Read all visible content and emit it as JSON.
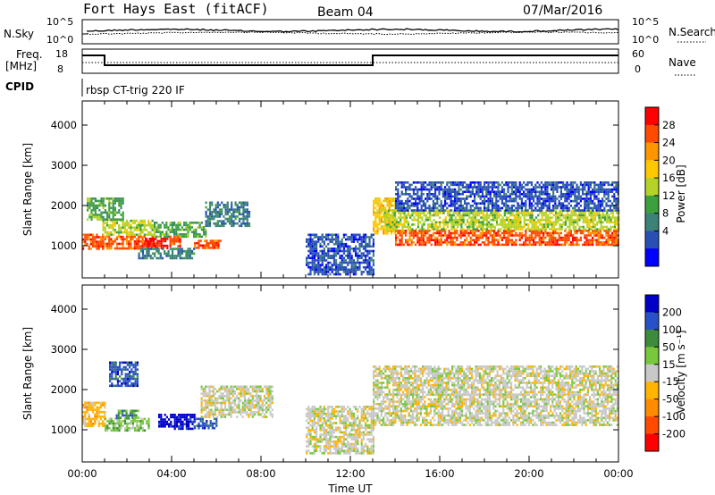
{
  "header": {
    "station": "Fort Hays East (fitACF)",
    "beam": "Beam 04",
    "date": "07/Mar/2016"
  },
  "top_panel_labels": {
    "nsky": "N.Sky",
    "nsearch": "N.Search",
    "nsky_ticks": [
      "10^5",
      "10^0"
    ],
    "nsearch_ticks": [
      "10^5",
      "10^0"
    ],
    "freq_line1": "Freq.",
    "freq_line2": "[MHz]",
    "freq_ticks": [
      "18",
      "8"
    ],
    "nave": "Nave",
    "nave_ticks": [
      "60",
      "0"
    ],
    "cpid": "CPID",
    "cpid_value": "rbsp CT-trig 220 IF"
  },
  "chart_data": [
    {
      "type": "heatmap",
      "name": "power-panel",
      "ylabel": "Slant Range [km]",
      "xlabel": "",
      "ylim": [
        200,
        4600
      ],
      "xlim": [
        0,
        24
      ],
      "y_ticks": [
        1000,
        2000,
        3000,
        4000
      ],
      "x_ticks": [
        0,
        4,
        8,
        12,
        16,
        20,
        24
      ],
      "colorbar": {
        "label": "Power [dB]",
        "ticks": [
          "28",
          "24",
          "20",
          "16",
          "12",
          "8",
          "4"
        ],
        "colors": [
          "#ff0000",
          "#ff4a00",
          "#ff9600",
          "#ffc800",
          "#b4d228",
          "#3ca03c",
          "#3c8278",
          "#2850b4",
          "#0000ff"
        ]
      },
      "regions": [
        {
          "t0": 0.0,
          "t1": 0.9,
          "r0": 950,
          "r1": 1300,
          "level": 1
        },
        {
          "t0": 0.9,
          "t1": 3.2,
          "r0": 950,
          "r1": 1250,
          "level": 1
        },
        {
          "t0": 0.9,
          "t1": 3.2,
          "r0": 1250,
          "r1": 1650,
          "level": 4
        },
        {
          "t0": 0.2,
          "t1": 1.8,
          "r0": 1650,
          "r1": 2200,
          "level": 5
        },
        {
          "t0": 2.8,
          "t1": 3.8,
          "r0": 950,
          "r1": 1200,
          "level": 0
        },
        {
          "t0": 3.2,
          "t1": 5.5,
          "r0": 1250,
          "r1": 1600,
          "level": 5
        },
        {
          "t0": 3.9,
          "t1": 4.4,
          "r0": 1000,
          "r1": 1250,
          "level": 1
        },
        {
          "t0": 5.0,
          "t1": 6.2,
          "r0": 950,
          "r1": 1150,
          "level": 1
        },
        {
          "t0": 5.5,
          "t1": 7.5,
          "r0": 1500,
          "r1": 2100,
          "level": 6
        },
        {
          "t0": 2.5,
          "t1": 5.0,
          "r0": 700,
          "r1": 950,
          "level": 6
        },
        {
          "t0": 10.0,
          "t1": 13.0,
          "r0": 300,
          "r1": 1300,
          "level": 7
        },
        {
          "t0": 13.0,
          "t1": 14.0,
          "r0": 1300,
          "r1": 2200,
          "level": 3
        },
        {
          "t0": 14.0,
          "t1": 24.0,
          "r0": 1050,
          "r1": 1400,
          "level": 1
        },
        {
          "t0": 13.5,
          "t1": 24.0,
          "r0": 1400,
          "r1": 1900,
          "level": 4
        },
        {
          "t0": 14.0,
          "t1": 24.0,
          "r0": 1900,
          "r1": 2600,
          "level": 7
        }
      ]
    },
    {
      "type": "heatmap",
      "name": "velocity-panel",
      "ylabel": "Slant Range [km]",
      "xlabel": "Time UT",
      "ylim": [
        200,
        4600
      ],
      "xlim": [
        0,
        24
      ],
      "y_ticks": [
        1000,
        2000,
        3000,
        4000
      ],
      "x_ticks": [
        0,
        4,
        8,
        12,
        16,
        20,
        24
      ],
      "x_tick_labels": [
        "00:00",
        "04:00",
        "08:00",
        "12:00",
        "16:00",
        "20:00",
        "00:00"
      ],
      "colorbar": {
        "label": "Velocity [m s⁻¹]",
        "ticks": [
          "200",
          "100",
          "50",
          "15",
          "-15",
          "-50",
          "-100",
          "-200"
        ],
        "colors": [
          "#0000c8",
          "#2850c8",
          "#3c8c3c",
          "#78c83c",
          "#c8c8c8",
          "#ffb400",
          "#ff8c00",
          "#ff4a00",
          "#ff0000"
        ]
      },
      "regions": [
        {
          "t0": 0.0,
          "t1": 1.0,
          "r0": 1100,
          "r1": 1700,
          "level": 5
        },
        {
          "t0": 1.0,
          "t1": 3.0,
          "r0": 1000,
          "r1": 1300,
          "level": 3
        },
        {
          "t0": 1.5,
          "t1": 2.5,
          "r0": 1300,
          "r1": 1500,
          "level": 2
        },
        {
          "t0": 3.4,
          "t1": 5.0,
          "r0": 1000,
          "r1": 1400,
          "level": 0
        },
        {
          "t0": 5.0,
          "t1": 6.0,
          "r0": 1050,
          "r1": 1300,
          "level": 1
        },
        {
          "t0": 5.3,
          "t1": 8.5,
          "r0": 1300,
          "r1": 2100,
          "level": 4
        },
        {
          "t0": 1.2,
          "t1": 2.5,
          "r0": 2100,
          "r1": 2700,
          "level": 1
        },
        {
          "t0": 10.0,
          "t1": 13.0,
          "r0": 400,
          "r1": 1600,
          "level": 4
        },
        {
          "t0": 13.0,
          "t1": 24.0,
          "r0": 1100,
          "r1": 1900,
          "level": 4
        },
        {
          "t0": 13.0,
          "t1": 24.0,
          "r0": 1900,
          "r1": 2600,
          "level": 4
        }
      ]
    }
  ]
}
